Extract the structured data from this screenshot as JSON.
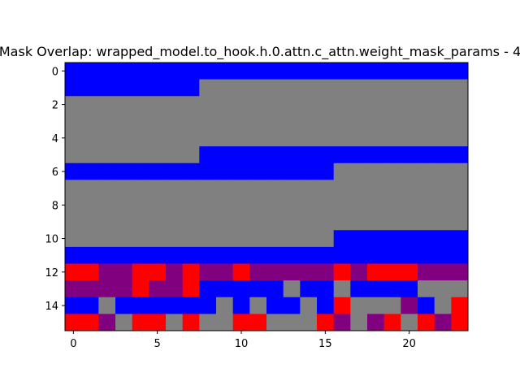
{
  "chart_data": {
    "type": "heatmap",
    "title": "Mask Overlap: wrapped_model.to_hook.h.0.attn.c_attn.weight_mask_params - 4",
    "xlabel": "",
    "ylabel": "",
    "n_cols": 24,
    "n_rows": 16,
    "xlim": [
      -0.5,
      23.5
    ],
    "ylim": [
      15.5,
      -0.5
    ],
    "x_ticks": [
      0,
      5,
      10,
      15,
      20
    ],
    "y_ticks": [
      0,
      2,
      4,
      6,
      8,
      10,
      12,
      14
    ],
    "legend": "none",
    "grid": false,
    "palette": {
      "B": "#0000ff",
      "G": "#808080",
      "R": "#ff0000",
      "P": "#800080"
    },
    "cells": [
      "BBBBBBBBBBBBBBBBBBBBBBBB",
      "BBBBBBBBGGGGGGGGGGGGGGGG",
      "GGGGGGGGGGGGGGGGGGGGGGGG",
      "GGGGGGGGGGGGGGGGGGGGGGGG",
      "GGGGGGGGGGGGGGGGGGGGGGGG",
      "GGGGGGGGBBBBBBBBBBBBBBBB",
      "BBBBBBBBBBBBBBBBGGGGGGGG",
      "GGGGGGGGGGGGGGGGGGGGGGGG",
      "GGGGGGGGGGGGGGGGGGGGGGGG",
      "GGGGGGGGGGGGGGGGGGGGGGGG",
      "GGGGGGGGGGGGGGGGBBBBBBBB",
      "BBBBBBBBBBBBBBBBBBBBBBBB",
      "RRPPRRPRPPRPPPPPRPRRRPPP",
      "PPPPRPPRBBBBBGBBGBBBBGGG",
      "BBGBBBBBBGBGBBGBRGGGPBGR",
      "RRPGRRGRGGRRGGGRPGPRGRPR"
    ]
  }
}
